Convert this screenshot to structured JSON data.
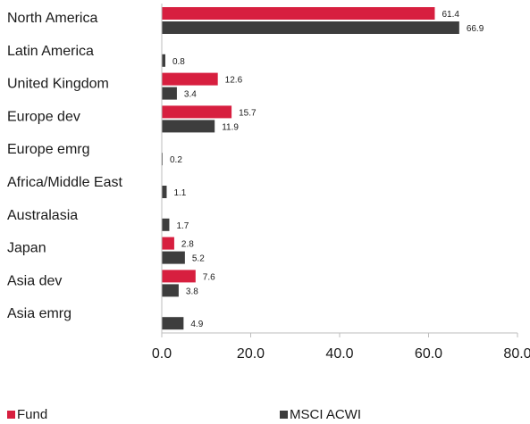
{
  "chart_data": {
    "type": "bar",
    "orientation": "horizontal",
    "categories": [
      "North America",
      "Latin America",
      "United Kingdom",
      "Europe dev",
      "Europe emrg",
      "Africa/Middle East",
      "Australasia",
      "Japan",
      "Asia dev",
      "Asia emrg"
    ],
    "series": [
      {
        "name": "Fund",
        "color": "#d71f3f",
        "values": [
          61.4,
          null,
          12.6,
          15.7,
          null,
          null,
          null,
          2.8,
          7.6,
          null
        ]
      },
      {
        "name": "MSCI ACWI",
        "color": "#3d3d3d",
        "values": [
          66.9,
          0.8,
          3.4,
          11.9,
          0.2,
          1.1,
          1.7,
          5.2,
          3.8,
          4.9
        ]
      }
    ],
    "xlim": [
      0,
      80
    ],
    "xticks": [
      "0.0",
      "20.0",
      "40.0",
      "60.0",
      "80.0"
    ],
    "xtick_values": [
      0,
      20,
      40,
      60,
      80
    ],
    "value_labels": {
      "Fund": [
        "61.4",
        null,
        "12.6",
        "15.7",
        null,
        null,
        null,
        "2.8",
        "7.6",
        null
      ],
      "MSCI ACWI": [
        "66.9",
        "0.8",
        "3.4",
        "11.9",
        "0.2",
        "1.1",
        "1.7",
        "5.2",
        "3.8",
        "4.9"
      ]
    },
    "grid": false,
    "legend_position": "bottom"
  },
  "legend": {
    "fund_label": "Fund",
    "msci_label": "MSCI ACWI"
  }
}
